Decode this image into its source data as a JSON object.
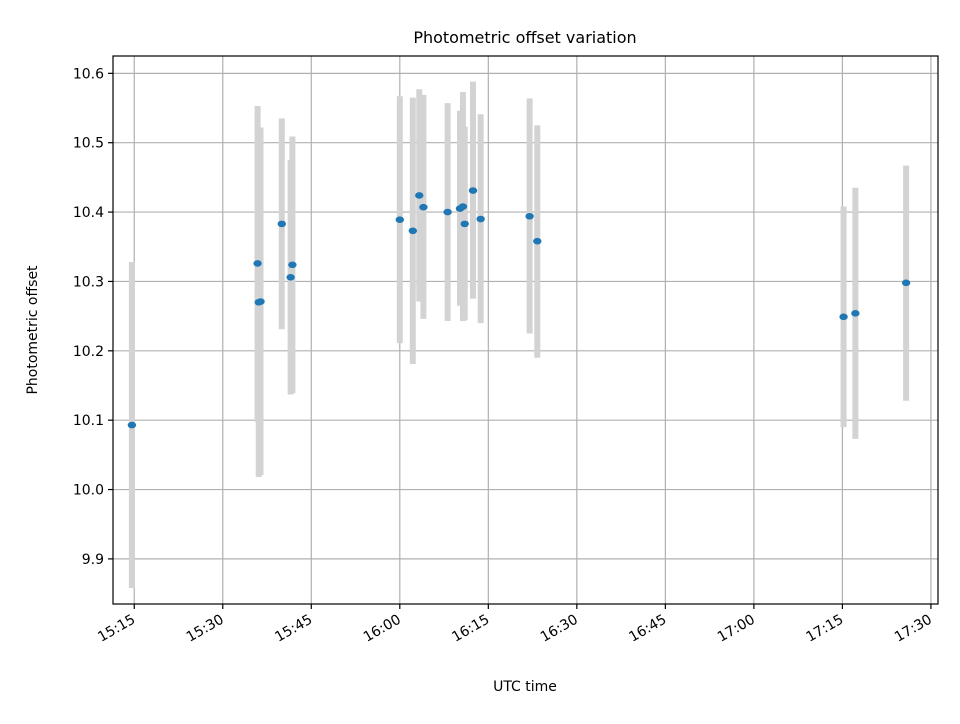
{
  "chart_data": {
    "type": "scatter",
    "title": "Photometric offset variation",
    "xlabel": "UTC time",
    "ylabel": "Photometric offset",
    "xlim": [
      "15:11.4",
      "17:31.2"
    ],
    "ylim": [
      9.835,
      10.625
    ],
    "x_ticks": [
      "15:15",
      "15:30",
      "15:45",
      "16:00",
      "16:15",
      "16:30",
      "16:45",
      "17:00",
      "17:15",
      "17:30"
    ],
    "y_ticks": [
      9.9,
      10.0,
      10.1,
      10.2,
      10.3,
      10.4,
      10.5,
      10.6
    ],
    "y_tick_labels": [
      "9.9",
      "10.0",
      "10.1",
      "10.2",
      "10.3",
      "10.4",
      "10.5",
      "10.6"
    ],
    "grid": true,
    "x_tick_rotation": "30 degrees",
    "colors": {
      "point": "#1f77b4",
      "error_bar": "#d3d3d3",
      "grid": "#b0b0b0"
    },
    "series": [
      {
        "points": [
          {
            "time": "15:14.6",
            "y": 10.093,
            "ylo": 9.858,
            "yhi": 10.328
          },
          {
            "time": "15:35.9",
            "y": 10.326,
            "ylo": 10.098,
            "yhi": 10.553
          },
          {
            "time": "15:36.1",
            "y": 10.27,
            "ylo": 10.018,
            "yhi": 10.522
          },
          {
            "time": "15:36.4",
            "y": 10.271,
            "ylo": 10.021,
            "yhi": 10.522
          },
          {
            "time": "15:40.0",
            "y": 10.383,
            "ylo": 10.231,
            "yhi": 10.535
          },
          {
            "time": "15:41.5",
            "y": 10.306,
            "ylo": 10.137,
            "yhi": 10.475
          },
          {
            "time": "15:41.8",
            "y": 10.324,
            "ylo": 10.139,
            "yhi": 10.509
          },
          {
            "time": "16:00.0",
            "y": 10.389,
            "ylo": 10.211,
            "yhi": 10.567
          },
          {
            "time": "16:02.2",
            "y": 10.373,
            "ylo": 10.181,
            "yhi": 10.565
          },
          {
            "time": "16:03.3",
            "y": 10.424,
            "ylo": 10.271,
            "yhi": 10.577
          },
          {
            "time": "16:04.0",
            "y": 10.407,
            "ylo": 10.246,
            "yhi": 10.569
          },
          {
            "time": "16:08.1",
            "y": 10.4,
            "ylo": 10.243,
            "yhi": 10.557
          },
          {
            "time": "16:10.2",
            "y": 10.405,
            "ylo": 10.265,
            "yhi": 10.546
          },
          {
            "time": "16:10.7",
            "y": 10.408,
            "ylo": 10.243,
            "yhi": 10.573
          },
          {
            "time": "16:11.0",
            "y": 10.383,
            "ylo": 10.244,
            "yhi": 10.523
          },
          {
            "time": "16:12.4",
            "y": 10.431,
            "ylo": 10.275,
            "yhi": 10.588
          },
          {
            "time": "16:13.7",
            "y": 10.39,
            "ylo": 10.24,
            "yhi": 10.541
          },
          {
            "time": "16:22.0",
            "y": 10.394,
            "ylo": 10.225,
            "yhi": 10.564
          },
          {
            "time": "16:23.3",
            "y": 10.358,
            "ylo": 10.19,
            "yhi": 10.525
          },
          {
            "time": "17:15.2",
            "y": 10.249,
            "ylo": 10.09,
            "yhi": 10.408
          },
          {
            "time": "17:17.2",
            "y": 10.254,
            "ylo": 10.073,
            "yhi": 10.435
          },
          {
            "time": "17:25.8",
            "y": 10.298,
            "ylo": 10.128,
            "yhi": 10.467
          }
        ]
      }
    ]
  }
}
